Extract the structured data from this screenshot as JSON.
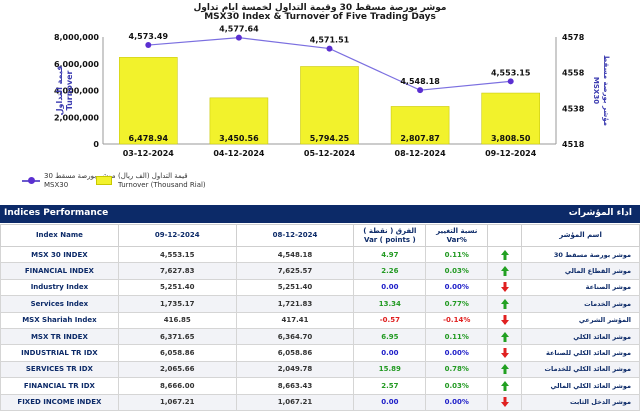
{
  "chart_data": {
    "type": "bar",
    "title_ar": "موشر بورصة مسقط 30 وقيمة التداول لخمسة ايام تداول",
    "title": "MSX30 Index & Turnover of Five Trading Days",
    "categories": [
      "03-12-2024",
      "04-12-2024",
      "05-12-2024",
      "08-12-2024",
      "09-12-2024"
    ],
    "series": [
      {
        "name": "Turnover (Thousand Rial)",
        "type": "bar",
        "axis": "left",
        "values": [
          6478.94,
          3450.56,
          5794.25,
          2807.87,
          3808.5
        ],
        "labels": [
          "6,478.94",
          "3,450.56",
          "5,794.25",
          "2,807.87",
          "3,808.50"
        ]
      },
      {
        "name": "MSX30",
        "type": "line",
        "axis": "right",
        "values": [
          4573.49,
          4577.64,
          4571.51,
          4548.18,
          4553.15
        ],
        "labels": [
          "4,573.49",
          "4,577.64",
          "4,571.51",
          "4,548.18",
          "4,553.15"
        ]
      }
    ],
    "ylabel_left_ar": "قيمة التداول",
    "ylabel_left": "Turnover",
    "ylabel_right_ar": "مؤشر بورصة مسقط",
    "ylabel_right": "MSX30",
    "yticks_left": [
      "0",
      "2,000,000",
      "4,000,000",
      "6,000,000",
      "8,000,000"
    ],
    "ylim_left": [
      0,
      8000
    ],
    "yticks_right": [
      "4518",
      "4538",
      "4558",
      "4578"
    ],
    "ylim_right": [
      4518,
      4578
    ],
    "legend": {
      "line_ar": "موشر بورصة مسقط 30",
      "line_en": "MSX30",
      "bar_ar": "قيمة التداول (الف ريال)",
      "bar_en": "Turnover (Thousand Rial)"
    },
    "bar_color": "#f2f22c",
    "line_color": "#5b2fd1"
  },
  "indices": {
    "title": "Indices Performance",
    "title_ar": "اداء المؤشرات",
    "columns": [
      "Index Name",
      "09-12-2024",
      "08-12-2024",
      "الفرق ( نقطة )\nVar ( points )",
      "نسبة التغيير\nVar%",
      "",
      "اسم المؤشر"
    ],
    "col_var_points_ar": "الفرق ( نقطة )",
    "col_var_points_en": "Var ( points )",
    "col_var_pct_ar": "نسبة التغيير",
    "col_var_pct_en": "Var%",
    "rows": [
      {
        "name": "MSX 30 INDEX",
        "d1": "4,553.15",
        "d2": "4,548.18",
        "var": "4.97",
        "pct": "0.11%",
        "dir": "up",
        "name_ar": "موشر بورصة مسقط 30"
      },
      {
        "name": "FINANCIAL INDEX",
        "d1": "7,627.83",
        "d2": "7,625.57",
        "var": "2.26",
        "pct": "0.03%",
        "dir": "up",
        "name_ar": "موشر القطاع المالي"
      },
      {
        "name": "Industry Index",
        "d1": "5,251.40",
        "d2": "5,251.40",
        "var": "0.00",
        "pct": "0.00%",
        "dir": "down",
        "name_ar": "موشر الصناعة"
      },
      {
        "name": "Services Index",
        "d1": "1,735.17",
        "d2": "1,721.83",
        "var": "13.34",
        "pct": "0.77%",
        "dir": "up",
        "name_ar": "موشر الخدمات"
      },
      {
        "name": "MSX Shariah Index",
        "d1": "416.85",
        "d2": "417.41",
        "var": "-0.57",
        "pct": "-0.14%",
        "dir": "down",
        "name_ar": "المؤشر الشرعي"
      },
      {
        "name": "MSX TR INDEX",
        "d1": "6,371.65",
        "d2": "6,364.70",
        "var": "6.95",
        "pct": "0.11%",
        "dir": "up",
        "name_ar": "موشر العائد الكلي"
      },
      {
        "name": "INDUSTRIAL TR IDX",
        "d1": "6,058.86",
        "d2": "6,058.86",
        "var": "0.00",
        "pct": "0.00%",
        "dir": "down",
        "name_ar": "موشر العائد الكلي للصناعة"
      },
      {
        "name": "SERVICES TR IDX",
        "d1": "2,065.66",
        "d2": "2,049.78",
        "var": "15.89",
        "pct": "0.78%",
        "dir": "up",
        "name_ar": "موشر العائد الكلي للخدمات"
      },
      {
        "name": "FINANCIAL TR IDX",
        "d1": "8,666.00",
        "d2": "8,663.43",
        "var": "2.57",
        "pct": "0.03%",
        "dir": "up",
        "name_ar": "موشر العائد الكلي المالي"
      },
      {
        "name": "FIXED INCOME INDEX",
        "d1": "1,067.21",
        "d2": "1,067.21",
        "var": "0.00",
        "pct": "0.00%",
        "dir": "down",
        "name_ar": "موشر الدخل الثابت"
      }
    ]
  }
}
